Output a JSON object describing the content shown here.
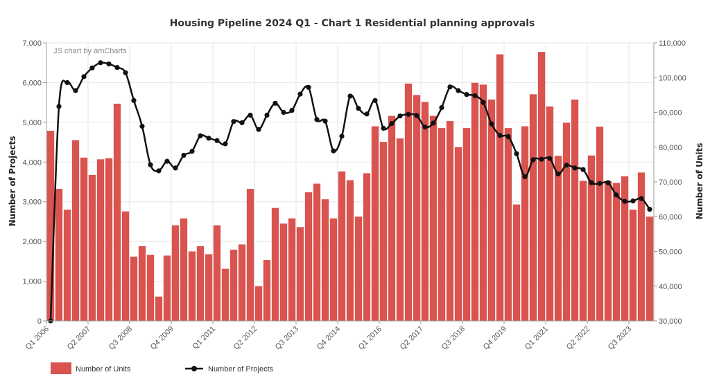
{
  "chart_data": {
    "type": "bar",
    "title": "Housing Pipeline 2024 Q1 - Chart 1 Residential planning approvals",
    "credit": "JS chart by amCharts",
    "y_left_label": "Number of Projects",
    "y_right_label": "Number of Units",
    "y_left_lim": [
      0,
      7000
    ],
    "y_left_ticks": [
      "0",
      "1,000",
      "2,000",
      "3,000",
      "4,000",
      "5,000",
      "6,000",
      "7,000"
    ],
    "y_right_lim": [
      30000,
      110000
    ],
    "y_right_ticks": [
      "30,000",
      "40,000",
      "50,000",
      "60,000",
      "70,000",
      "80,000",
      "90,000",
      "100,000",
      "110,000"
    ],
    "x_tick_labels": [
      {
        "index": 0,
        "label": "Q1 2006"
      },
      {
        "index": 5,
        "label": "Q2 2007"
      },
      {
        "index": 10,
        "label": "Q3 2008"
      },
      {
        "index": 15,
        "label": "Q4 2009"
      },
      {
        "index": 20,
        "label": "Q1 2011"
      },
      {
        "index": 25,
        "label": "Q2 2012"
      },
      {
        "index": 30,
        "label": "Q3 2013"
      },
      {
        "index": 35,
        "label": "Q4 2014"
      },
      {
        "index": 40,
        "label": "Q1 2016"
      },
      {
        "index": 45,
        "label": "Q2 2017"
      },
      {
        "index": 50,
        "label": "Q3 2018"
      },
      {
        "index": 55,
        "label": "Q4 2019"
      },
      {
        "index": 60,
        "label": "Q1 2021"
      },
      {
        "index": 65,
        "label": "Q2 2022"
      },
      {
        "index": 70,
        "label": "Q3 2023"
      }
    ],
    "grid": true,
    "legend_position": "bottom-left",
    "colors": {
      "bars": "#d9534f",
      "line": "#111111",
      "grid": "#e6e6e6",
      "axis": "#999999"
    },
    "series": [
      {
        "name": "Number of Units",
        "type": "bar",
        "axis": "right",
        "values": [
          84700,
          68000,
          62000,
          82000,
          77000,
          72000,
          76500,
          76800,
          92500,
          61500,
          48500,
          51500,
          49000,
          37000,
          48800,
          57500,
          59500,
          50000,
          51500,
          49200,
          57500,
          45000,
          50500,
          52000,
          68000,
          40000,
          47500,
          62500,
          58000,
          59500,
          57000,
          67000,
          69500,
          65000,
          59500,
          73000,
          70500,
          60000,
          72500,
          86000,
          81500,
          89000,
          82500,
          98300,
          95000,
          93000,
          89000,
          85500,
          87500,
          80000,
          85500,
          98500,
          98000,
          93700,
          106700,
          85500,
          63500,
          86000,
          95200,
          107400,
          91700,
          77500,
          87000,
          93700,
          70300,
          77600,
          85900,
          70300,
          69700,
          71600,
          62000,
          72700,
          60000
        ]
      },
      {
        "name": "Number of Projects",
        "type": "line",
        "axis": "left",
        "values": [
          0,
          5400,
          6000,
          5800,
          6150,
          6370,
          6500,
          6470,
          6380,
          6250,
          5550,
          4900,
          3930,
          3780,
          4020,
          3850,
          4170,
          4270,
          4660,
          4600,
          4540,
          4460,
          5020,
          4990,
          5180,
          4820,
          5180,
          5480,
          5250,
          5300,
          5710,
          5880,
          5070,
          5030,
          4280,
          4650,
          5660,
          5350,
          5210,
          5550,
          4850,
          4970,
          5160,
          5200,
          5170,
          4880,
          4980,
          5370,
          5890,
          5800,
          5700,
          5670,
          5500,
          4960,
          4670,
          4640,
          4210,
          3630,
          4060,
          4070,
          4090,
          3700,
          3920,
          3850,
          3810,
          3480,
          3460,
          3480,
          3170,
          3010,
          3020,
          3080,
          2810
        ]
      }
    ]
  }
}
